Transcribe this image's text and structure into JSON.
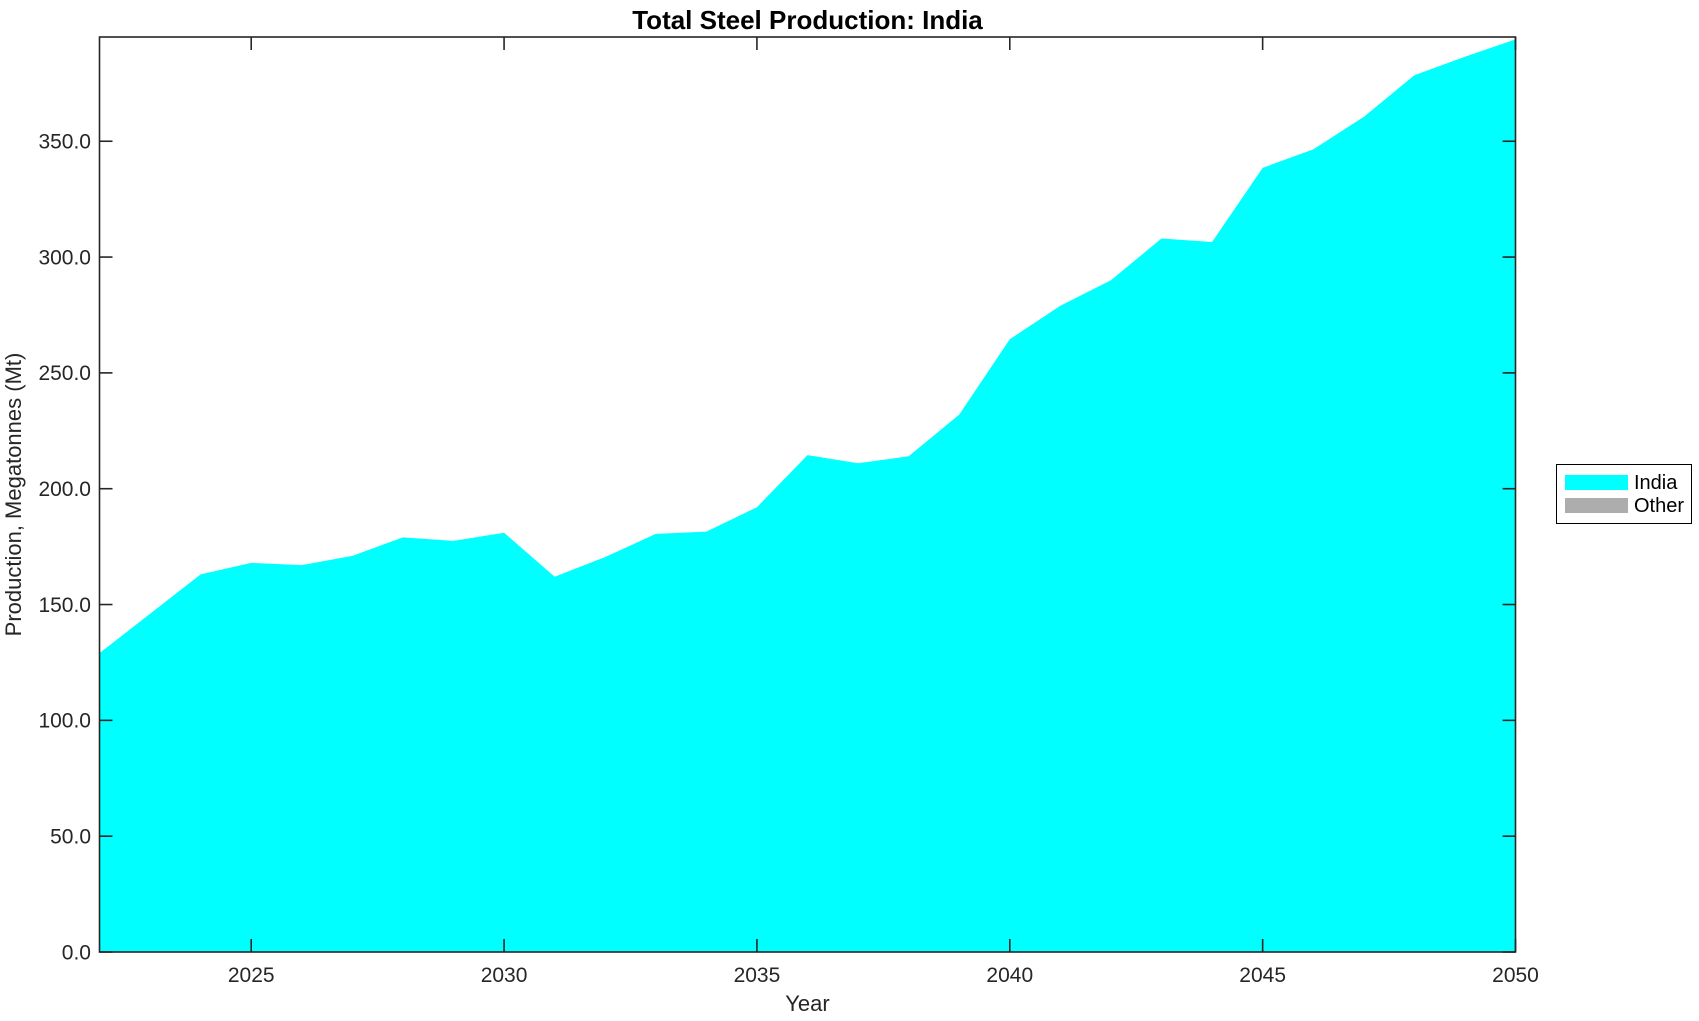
{
  "chart_data": {
    "type": "area",
    "title": "Total Steel Production: India",
    "xlabel": "Year",
    "ylabel": "Production, Megatonnes (Mt)",
    "x": [
      2022,
      2023,
      2024,
      2025,
      2026,
      2027,
      2028,
      2029,
      2030,
      2031,
      2032,
      2033,
      2034,
      2035,
      2036,
      2037,
      2038,
      2039,
      2040,
      2041,
      2042,
      2043,
      2044,
      2045,
      2046,
      2047,
      2048,
      2049,
      2050
    ],
    "series": [
      {
        "name": "India",
        "color": "#00FFFF",
        "values": [
          129,
          146,
          163,
          168,
          167,
          171,
          179,
          177.5,
          181,
          162,
          170.5,
          180.5,
          181.5,
          192,
          214.5,
          211,
          214,
          232,
          264.5,
          279,
          290,
          308,
          306.5,
          338.5,
          346.5,
          360.5,
          378.5,
          386.5,
          394
        ]
      }
    ],
    "legend": {
      "position": "right-outside",
      "entries": [
        {
          "label": "India",
          "color": "#00FFFF"
        },
        {
          "label": "Other",
          "color": "#ADADAD"
        }
      ]
    },
    "xlim": [
      2022,
      2050
    ],
    "ylim": [
      0,
      395
    ],
    "x_ticks": [
      2025,
      2030,
      2035,
      2040,
      2045,
      2050
    ],
    "x_tick_labels": [
      "2025",
      "2030",
      "2035",
      "2040",
      "2045",
      "2050"
    ],
    "y_ticks": [
      0,
      50,
      100,
      150,
      200,
      250,
      300,
      350
    ],
    "y_tick_labels": [
      "0.0",
      "50.0",
      "100.0",
      "150.0",
      "200.0",
      "250.0",
      "300.0",
      "350.0"
    ],
    "grid": false,
    "background_color": "#FFFFFF",
    "axis_color": "#262626",
    "title_color": "#000000"
  }
}
